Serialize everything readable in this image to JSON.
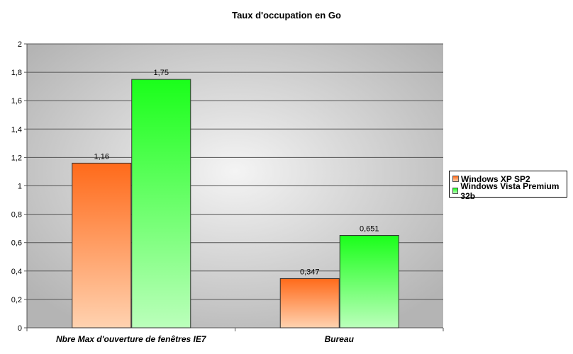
{
  "chart_data": {
    "type": "bar",
    "title": "Taux d'occupation en Go",
    "categories": [
      "Nbre Max d'ouverture de fenêtres IE7",
      "Bureau"
    ],
    "series": [
      {
        "name": "Windows XP SP2",
        "values": [
          1.16,
          0.347
        ],
        "labels": [
          "1,16",
          "0,347"
        ],
        "color": "#ff6a1a",
        "color_light": "#ffd2b0"
      },
      {
        "name": "Windows Vista Premium 32b",
        "values": [
          1.75,
          0.651
        ],
        "labels": [
          "1,75",
          "0,651"
        ],
        "color": "#1aff1a",
        "color_light": "#bbffbb"
      }
    ],
    "ylim": [
      0,
      2
    ],
    "yticks": [
      "0",
      "0,2",
      "0,4",
      "0,6",
      "0,8",
      "1",
      "1,2",
      "1,4",
      "1,6",
      "1,8",
      "2"
    ],
    "grid": true,
    "legend": "right",
    "xlabel": "",
    "ylabel": ""
  }
}
